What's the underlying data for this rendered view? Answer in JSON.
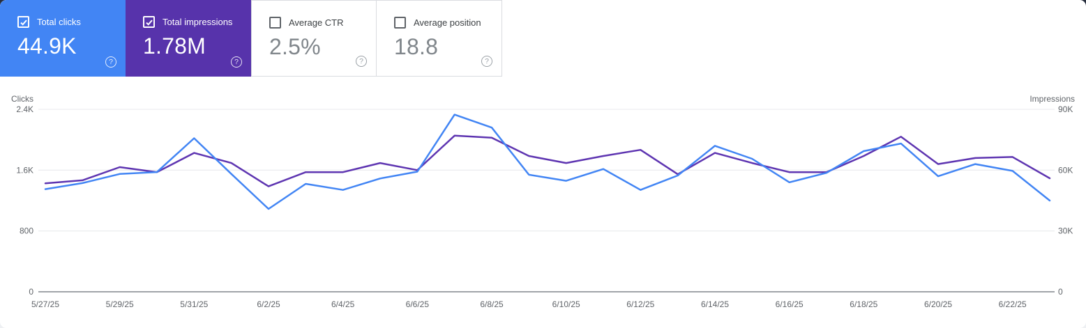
{
  "cards": [
    {
      "label": "Total clicks",
      "value": "44.9K",
      "selected": true,
      "color": "#4285f4",
      "text_color": "#ffffff"
    },
    {
      "label": "Total impressions",
      "value": "1.78M",
      "selected": true,
      "color": "#5733ab",
      "text_color": "#ffffff"
    },
    {
      "label": "Average CTR",
      "value": "2.5%",
      "selected": false
    },
    {
      "label": "Average position",
      "value": "18.8",
      "selected": false
    }
  ],
  "icons": {
    "help_glyph": "?",
    "checkbox_checked_glyph": "checkmark"
  },
  "chart_data": {
    "type": "line",
    "x": [
      "5/27/25",
      "5/28/25",
      "5/29/25",
      "5/30/25",
      "5/31/25",
      "6/1/25",
      "6/2/25",
      "6/3/25",
      "6/4/25",
      "6/5/25",
      "6/6/25",
      "6/7/25",
      "6/8/25",
      "6/9/25",
      "6/10/25",
      "6/11/25",
      "6/12/25",
      "6/13/25",
      "6/14/25",
      "6/15/25",
      "6/16/25",
      "6/17/25",
      "6/18/25",
      "6/19/25",
      "6/20/25",
      "6/21/25",
      "6/22/25",
      "6/23/25"
    ],
    "x_tick_labels": [
      "5/27/25",
      "5/29/25",
      "5/31/25",
      "6/2/25",
      "6/4/25",
      "6/6/25",
      "6/8/25",
      "6/10/25",
      "6/12/25",
      "6/14/25",
      "6/16/25",
      "6/18/25",
      "6/20/25",
      "6/22/25"
    ],
    "series": [
      {
        "name": "Clicks",
        "axis": "left",
        "color": "#4285f4",
        "values": [
          1350,
          1430,
          1550,
          1575,
          2020,
          1550,
          1090,
          1420,
          1340,
          1490,
          1580,
          2330,
          2160,
          1540,
          1460,
          1615,
          1340,
          1530,
          1920,
          1750,
          1440,
          1565,
          1850,
          1950,
          1520,
          1680,
          1590,
          1200
        ]
      },
      {
        "name": "Impressions",
        "axis": "right",
        "color": "#5e35b1",
        "values": [
          53500,
          55000,
          61500,
          59000,
          68500,
          63500,
          52000,
          59000,
          59000,
          63500,
          60000,
          77000,
          76000,
          67000,
          63500,
          67000,
          70000,
          58000,
          68500,
          63500,
          59000,
          59000,
          67000,
          76500,
          63000,
          66000,
          66500,
          56000
        ]
      }
    ],
    "left_axis": {
      "title": "Clicks",
      "ticks": [
        "0",
        "800",
        "1.6K",
        "2.4K"
      ],
      "range": [
        0,
        2400
      ]
    },
    "right_axis": {
      "title": "Impressions",
      "ticks": [
        "0",
        "30K",
        "60K",
        "90K"
      ],
      "range": [
        0,
        90000
      ]
    },
    "grid": true,
    "legend_position": "none",
    "grid_color": "#e8eaed",
    "baseline_color": "#80868b",
    "tick_label_color": "#5f6368"
  }
}
